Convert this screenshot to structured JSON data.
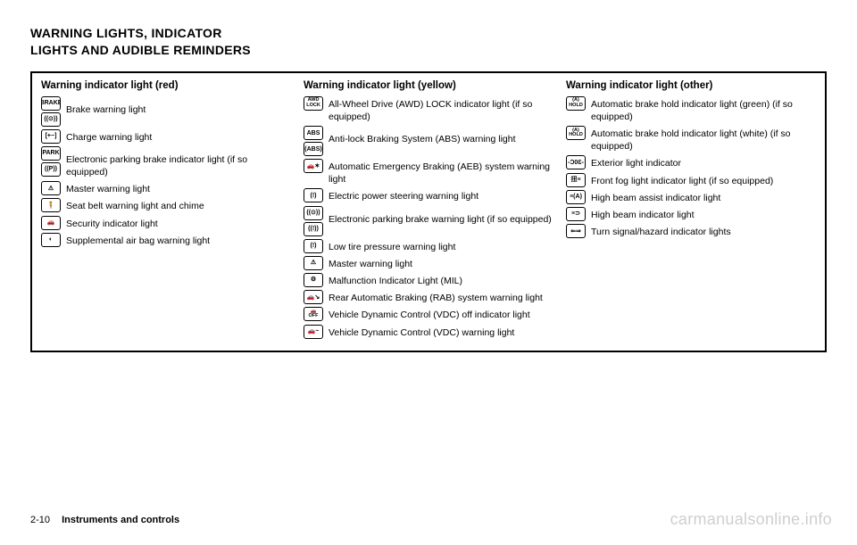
{
  "title_line1": "WARNING LIGHTS, INDICATOR",
  "title_line2": "LIGHTS AND AUDIBLE REMINDERS",
  "columns": [
    {
      "header": "Warning indicator light (red)",
      "items": [
        {
          "icons": [
            "BRAKE",
            "((⊙))"
          ],
          "desc": "Brake warning light"
        },
        {
          "icons": [
            "[+−]"
          ],
          "desc": "Charge warning light"
        },
        {
          "icons": [
            "PARK",
            "((P))"
          ],
          "desc": "Electronic parking brake indicator light (if so equipped)"
        },
        {
          "icons": [
            "⚠"
          ],
          "desc": "Master warning light"
        },
        {
          "icons": [
            "🧍"
          ],
          "desc": "Seat belt warning light and chime"
        },
        {
          "icons": [
            "🚗"
          ],
          "desc": "Security indicator light"
        },
        {
          "icons": [
            "◐"
          ],
          "desc": "Supplemental air bag warning light"
        }
      ]
    },
    {
      "header": "Warning indicator light (yellow)",
      "items": [
        {
          "icons": [
            "AWD\nLOCK"
          ],
          "desc": "All-Wheel Drive (AWD) LOCK indicator light (if so equipped)"
        },
        {
          "icons": [
            "ABS",
            "(ABS)"
          ],
          "desc": "Anti-lock Braking System (ABS) warning light"
        },
        {
          "icons": [
            "🚗✶"
          ],
          "desc": "Automatic Emergency Braking (AEB) system warning light"
        },
        {
          "icons": [
            "(!)"
          ],
          "desc": "Electric power steering warning light"
        },
        {
          "icons": [
            "((⊙))",
            "((!))"
          ],
          "desc": "Electronic parking brake warning light (if so equipped)"
        },
        {
          "icons": [
            "(!)"
          ],
          "desc": "Low tire pressure warning light"
        },
        {
          "icons": [
            "⚠"
          ],
          "desc": "Master warning light"
        },
        {
          "icons": [
            "⚙"
          ],
          "desc": "Malfunction Indicator Light (MIL)"
        },
        {
          "icons": [
            "🚗↘"
          ],
          "desc": "Rear Automatic Braking (RAB) system warning light"
        },
        {
          "icons": [
            "🚗\nOFF"
          ],
          "desc": "Vehicle Dynamic Control (VDC) off indicator light"
        },
        {
          "icons": [
            "🚗~"
          ],
          "desc": "Vehicle Dynamic Control (VDC) warning light"
        }
      ]
    },
    {
      "header": "Warning indicator light (other)",
      "items": [
        {
          "icons": [
            "(A)\nHOLD"
          ],
          "desc": "Automatic brake hold indicator light (green) (if so equipped)"
        },
        {
          "icons": [
            "(A)\nHOLD"
          ],
          "desc": "Automatic brake hold indicator light (white) (if so equipped)"
        },
        {
          "icons": [
            "-Ɔ0Ɛ-"
          ],
          "desc": "Exterior light indicator"
        },
        {
          "icons": [
            "扭≡"
          ],
          "desc": "Front fog light indicator light (if so equipped)"
        },
        {
          "icons": [
            "≡(A)"
          ],
          "desc": "High beam assist indicator light"
        },
        {
          "icons": [
            "≡⊃"
          ],
          "desc": "High beam indicator light"
        },
        {
          "icons": [
            "⇐⇒"
          ],
          "desc": "Turn signal/hazard indicator lights"
        }
      ]
    }
  ],
  "page_number": "2-10",
  "section_label": "Instruments and controls",
  "watermark": "carmanualsonline.info"
}
